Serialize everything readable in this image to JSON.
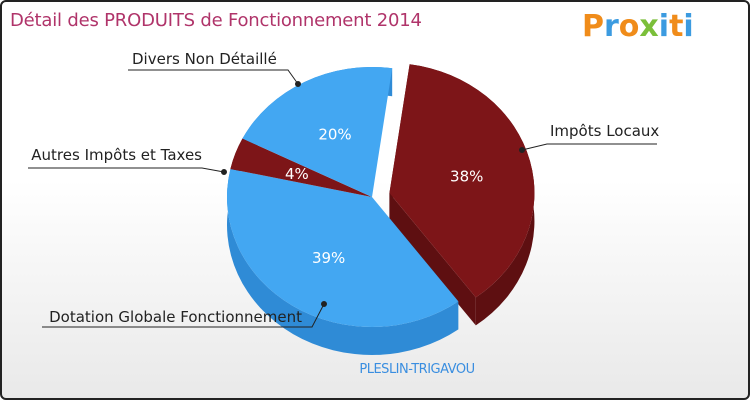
{
  "chart_data": {
    "type": "pie",
    "title": "Détail des PRODUITS de Fonctionnement 2014",
    "subtitle": "PLESLIN-TRIGAVOU",
    "slices": [
      {
        "label": "Impôts Locaux",
        "value": 38,
        "display": "38%",
        "color": "#7d1518",
        "side": "#5e0f11",
        "exploded": true
      },
      {
        "label": "Dotation Globale Fonctionnement",
        "value": 39,
        "display": "39%",
        "color": "#43a7f2",
        "side": "#2f8bd6",
        "exploded": false
      },
      {
        "label": "Autres Impôts et Taxes",
        "value": 4,
        "display": "4%",
        "color": "#7d1518",
        "side": "#5e0f11",
        "exploded": false
      },
      {
        "label": "Divers Non Détaillé",
        "value": 20,
        "display": "20%",
        "color": "#43a7f2",
        "side": "#2f8bd6",
        "exploded": false
      }
    ]
  },
  "logo": {
    "text": "Proxiti"
  }
}
